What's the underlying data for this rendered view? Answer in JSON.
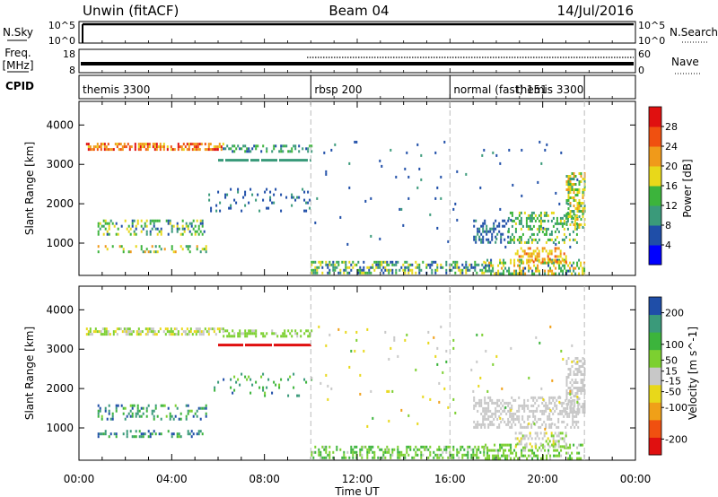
{
  "header": {
    "station": "Unwin (fitACF)",
    "beam": "Beam 04",
    "date": "14/Jul/2016"
  },
  "nsky_panel": {
    "left_label": "N.Sky",
    "right_label": "N.Search",
    "left_ticks": [
      "10^5",
      "10^0"
    ],
    "right_ticks": [
      "10^5",
      "10^0"
    ]
  },
  "freq_panel": {
    "left_label_1": "Freq.",
    "left_label_2": "[MHz]",
    "left_ticks": [
      "18",
      "8"
    ],
    "right_label": "Nave",
    "right_ticks": [
      "60",
      "0"
    ],
    "cpid_label": "CPID"
  },
  "cpid_segments": [
    {
      "label": "themis 3300",
      "start_h": 0
    },
    {
      "label": "rbsp 200",
      "start_h": 10
    },
    {
      "label": "normal (fast) 151",
      "start_h": 16
    },
    {
      "label": "themis 3300",
      "start_h": 18.7
    }
  ],
  "mode_boundaries_h": [
    10,
    16,
    21.8
  ],
  "x_axis": {
    "label": "Time UT",
    "range_h": [
      0,
      24
    ],
    "tick_hours": [
      0,
      4,
      8,
      12,
      16,
      20,
      24
    ],
    "tick_labels": [
      "00:00",
      "04:00",
      "08:00",
      "12:00",
      "16:00",
      "20:00",
      "00:00"
    ]
  },
  "chart_data": [
    {
      "type": "heatmap",
      "ylabel": "Slant Range [km]",
      "ylim": [
        180,
        4600
      ],
      "y_ticks": [
        1000,
        2000,
        3000,
        4000
      ],
      "colorbar": {
        "label": "Power [dB]",
        "range": [
          0,
          32
        ],
        "tick_values": [
          4,
          8,
          12,
          16,
          20,
          24,
          28
        ],
        "tick_labels": [
          "4",
          "8",
          "12",
          "16",
          "20",
          "24",
          "28"
        ],
        "colors": [
          "#0000ff",
          "#1f4ea8",
          "#3a9a7a",
          "#3cb43c",
          "#e8d81a",
          "#f09a1a",
          "#f05010",
          "#e01010"
        ]
      },
      "echo_regions": [
        {
          "t": [
            0.3,
            6.2
          ],
          "r": [
            3350,
            3550
          ],
          "level": [
            18,
            30
          ],
          "density": 0.55
        },
        {
          "t": [
            6.2,
            10.0
          ],
          "r": [
            3300,
            3500
          ],
          "level": [
            6,
            16
          ],
          "density": 0.35
        },
        {
          "t": [
            6.0,
            10.0
          ],
          "r": [
            3080,
            3140
          ],
          "level": [
            10,
            12
          ],
          "density": 0.95
        },
        {
          "t": [
            0.8,
            5.5
          ],
          "r": [
            1250,
            1600
          ],
          "level": [
            6,
            20
          ],
          "density": 0.3
        },
        {
          "t": [
            0.8,
            5.5
          ],
          "r": [
            750,
            950
          ],
          "level": [
            10,
            22
          ],
          "density": 0.3
        },
        {
          "t": [
            5.5,
            10.0
          ],
          "r": [
            1800,
            2400
          ],
          "level": [
            4,
            10
          ],
          "density": 0.12
        },
        {
          "t": [
            10.0,
            17.5
          ],
          "r": [
            250,
            550
          ],
          "level": [
            4,
            20
          ],
          "density": 0.45
        },
        {
          "t": [
            17.5,
            21.8
          ],
          "r": [
            250,
            600
          ],
          "level": [
            6,
            24
          ],
          "density": 0.5
        },
        {
          "t": [
            18.8,
            21.0
          ],
          "r": [
            500,
            900
          ],
          "level": [
            16,
            26
          ],
          "density": 0.45
        },
        {
          "t": [
            17.0,
            18.5
          ],
          "r": [
            1000,
            1600
          ],
          "level": [
            4,
            10
          ],
          "density": 0.45
        },
        {
          "t": [
            18.5,
            21.5
          ],
          "r": [
            1000,
            1800
          ],
          "level": [
            8,
            18
          ],
          "density": 0.4
        },
        {
          "t": [
            21.0,
            21.8
          ],
          "r": [
            1400,
            2800
          ],
          "level": [
            10,
            22
          ],
          "density": 0.55
        },
        {
          "t": [
            10.0,
            21.5
          ],
          "r": [
            900,
            3600
          ],
          "level": [
            4,
            10
          ],
          "density": 0.015
        }
      ]
    },
    {
      "type": "heatmap",
      "ylabel": "Slant Range [km]",
      "ylim": [
        180,
        4600
      ],
      "y_ticks": [
        1000,
        2000,
        3000,
        4000
      ],
      "colorbar": {
        "label": "Velocity [m s^-1]",
        "range": [
          -250,
          250
        ],
        "tick_values": [
          200,
          100,
          50,
          15,
          -15,
          -50,
          -100,
          -200
        ],
        "tick_labels": [
          "200",
          "100",
          "50",
          "15",
          "-15",
          "-50",
          "-100",
          "-200"
        ],
        "colors": [
          "#e01010",
          "#f05010",
          "#f0a018",
          "#e8d81a",
          "#c8c8c8",
          "#7cd030",
          "#3cb43c",
          "#3a9a7a",
          "#1f4ea8"
        ]
      },
      "echo_regions": [
        {
          "t": [
            0.3,
            6.2
          ],
          "r": [
            3350,
            3550
          ],
          "level": [
            -60,
            80
          ],
          "density": 0.55
        },
        {
          "t": [
            6.2,
            10.0
          ],
          "r": [
            3300,
            3500
          ],
          "level": [
            20,
            60
          ],
          "density": 0.4
        },
        {
          "t": [
            6.0,
            10.0
          ],
          "r": [
            3080,
            3140
          ],
          "level": [
            -240,
            -220
          ],
          "density": 0.95
        },
        {
          "t": [
            0.8,
            5.5
          ],
          "r": [
            1250,
            1600
          ],
          "level": [
            60,
            220
          ],
          "density": 0.3
        },
        {
          "t": [
            0.8,
            5.5
          ],
          "r": [
            750,
            950
          ],
          "level": [
            80,
            220
          ],
          "density": 0.3
        },
        {
          "t": [
            5.5,
            10.0
          ],
          "r": [
            1800,
            2400
          ],
          "level": [
            60,
            200
          ],
          "density": 0.1
        },
        {
          "t": [
            10.0,
            17.5
          ],
          "r": [
            250,
            550
          ],
          "level": [
            20,
            120
          ],
          "density": 0.45
        },
        {
          "t": [
            17.5,
            21.8
          ],
          "r": [
            250,
            600
          ],
          "level": [
            20,
            100
          ],
          "density": 0.45
        },
        {
          "t": [
            18.8,
            21.0
          ],
          "r": [
            500,
            900
          ],
          "level": [
            -40,
            60
          ],
          "density": 0.4
        },
        {
          "t": [
            17.0,
            21.5
          ],
          "r": [
            1000,
            1800
          ],
          "level": [
            -10,
            10
          ],
          "density": 0.45
        },
        {
          "t": [
            21.0,
            21.8
          ],
          "r": [
            1400,
            2800
          ],
          "level": [
            -20,
            20
          ],
          "density": 0.5
        },
        {
          "t": [
            10.0,
            21.5
          ],
          "r": [
            900,
            3600
          ],
          "level": [
            -100,
            100
          ],
          "density": 0.015
        }
      ]
    }
  ]
}
